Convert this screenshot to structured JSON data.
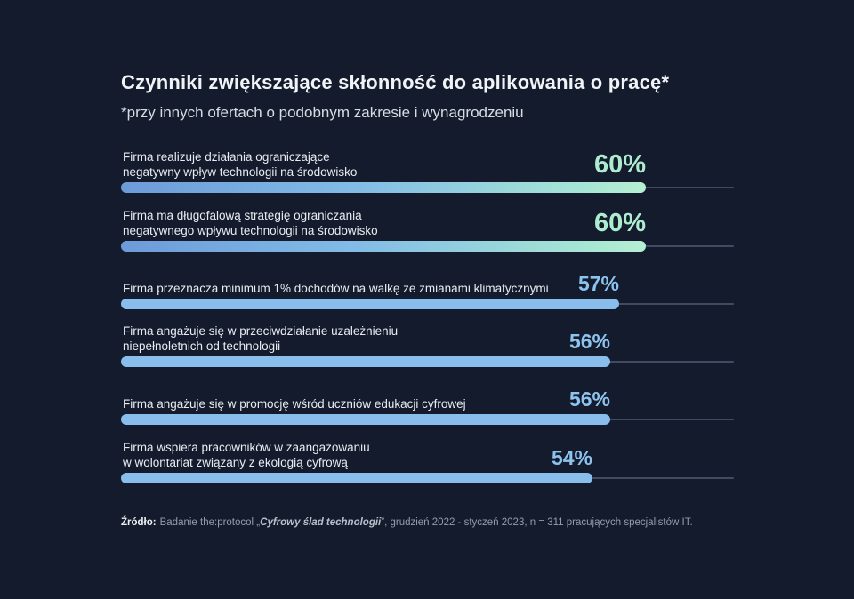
{
  "title": "Czynniki zwiększające skłonność do aplikowania o pracę*",
  "subtitle": "*przy innych ofertach o podobnym zakresie i wynagrodzeniu",
  "source": {
    "prefix": "Źródło:",
    "text_before": "Badanie the:protocol „",
    "study": "Cyfrowy ślad technologii",
    "text_after": "”, grudzień 2022 - styczeń 2023, n = 311 pracujących specjalistów IT."
  },
  "colors": {
    "background": "#141b2c",
    "bar_gradient_start": "#6d9bd9",
    "bar_gradient_end": "#b6f0d2",
    "bar_solid_blue": "#88bdec",
    "track_line": "#414b5f",
    "value_mint": "#aeeccf",
    "value_blue": "#8dc4ef",
    "text_primary": "#f1f4f7",
    "text_secondary": "#d7dce3"
  },
  "chart_data": {
    "type": "bar",
    "orientation": "horizontal",
    "title": "Czynniki zwiększające skłonność do aplikowania o pracę*",
    "subtitle": "*przy innych ofertach o podobnym zakresie i wynagrodzeniu",
    "unit": "%",
    "legend": "none",
    "grid": "off",
    "categories": [
      "Firma realizuje działania ograniczające negatywny wpływ technologii na środowisko",
      "Firma ma długofalową strategię ograniczania negatywnego wpływu technologii na środowisko",
      "Firma przeznacza minimum 1% dochodów na walkę ze zmianami klimatycznymi",
      "Firma angażuje się w przeciwdziałanie uzależnieniu niepełnoletnich od technologii",
      "Firma angażuje się w promocję wśród uczniów edukacji cyfrowej",
      "Firma wspiera pracowników w zaangażowaniu w wolontariat związany z ekologią cyfrową"
    ],
    "values": [
      60,
      60,
      57,
      56,
      56,
      54
    ],
    "value_labels": [
      "60%",
      "60%",
      "57%",
      "56%",
      "56%",
      "54%"
    ],
    "highlight_note": "first two bars emphasized with blue-to-mint gradient and larger value labels",
    "rows": [
      {
        "line1": "Firma realizuje działania ograniczające",
        "line2": "negatywny wpływ technologii na środowisko",
        "value": 60,
        "display": "60%",
        "emphasis": true
      },
      {
        "line1": "Firma ma długofalową strategię ograniczania",
        "line2": "negatywnego wpływu technologii na środowisko",
        "value": 60,
        "display": "60%",
        "emphasis": true
      },
      {
        "line1": "Firma przeznacza minimum 1% dochodów na walkę ze zmianami klimatycznymi",
        "value": 57,
        "display": "57%",
        "emphasis": false
      },
      {
        "line1": "Firma angażuje się w przeciwdziałanie uzależnieniu",
        "line2": "niepełnoletnich od technologii",
        "value": 56,
        "display": "56%",
        "emphasis": false
      },
      {
        "line1": "Firma angażuje się w promocję wśród uczniów edukacji cyfrowej",
        "value": 56,
        "display": "56%",
        "emphasis": false
      },
      {
        "line1": "Firma wspiera pracowników w zaangażowaniu",
        "line2": "w wolontariat związany z ekologią cyfrową",
        "value": 54,
        "display": "54%",
        "emphasis": false
      }
    ]
  }
}
